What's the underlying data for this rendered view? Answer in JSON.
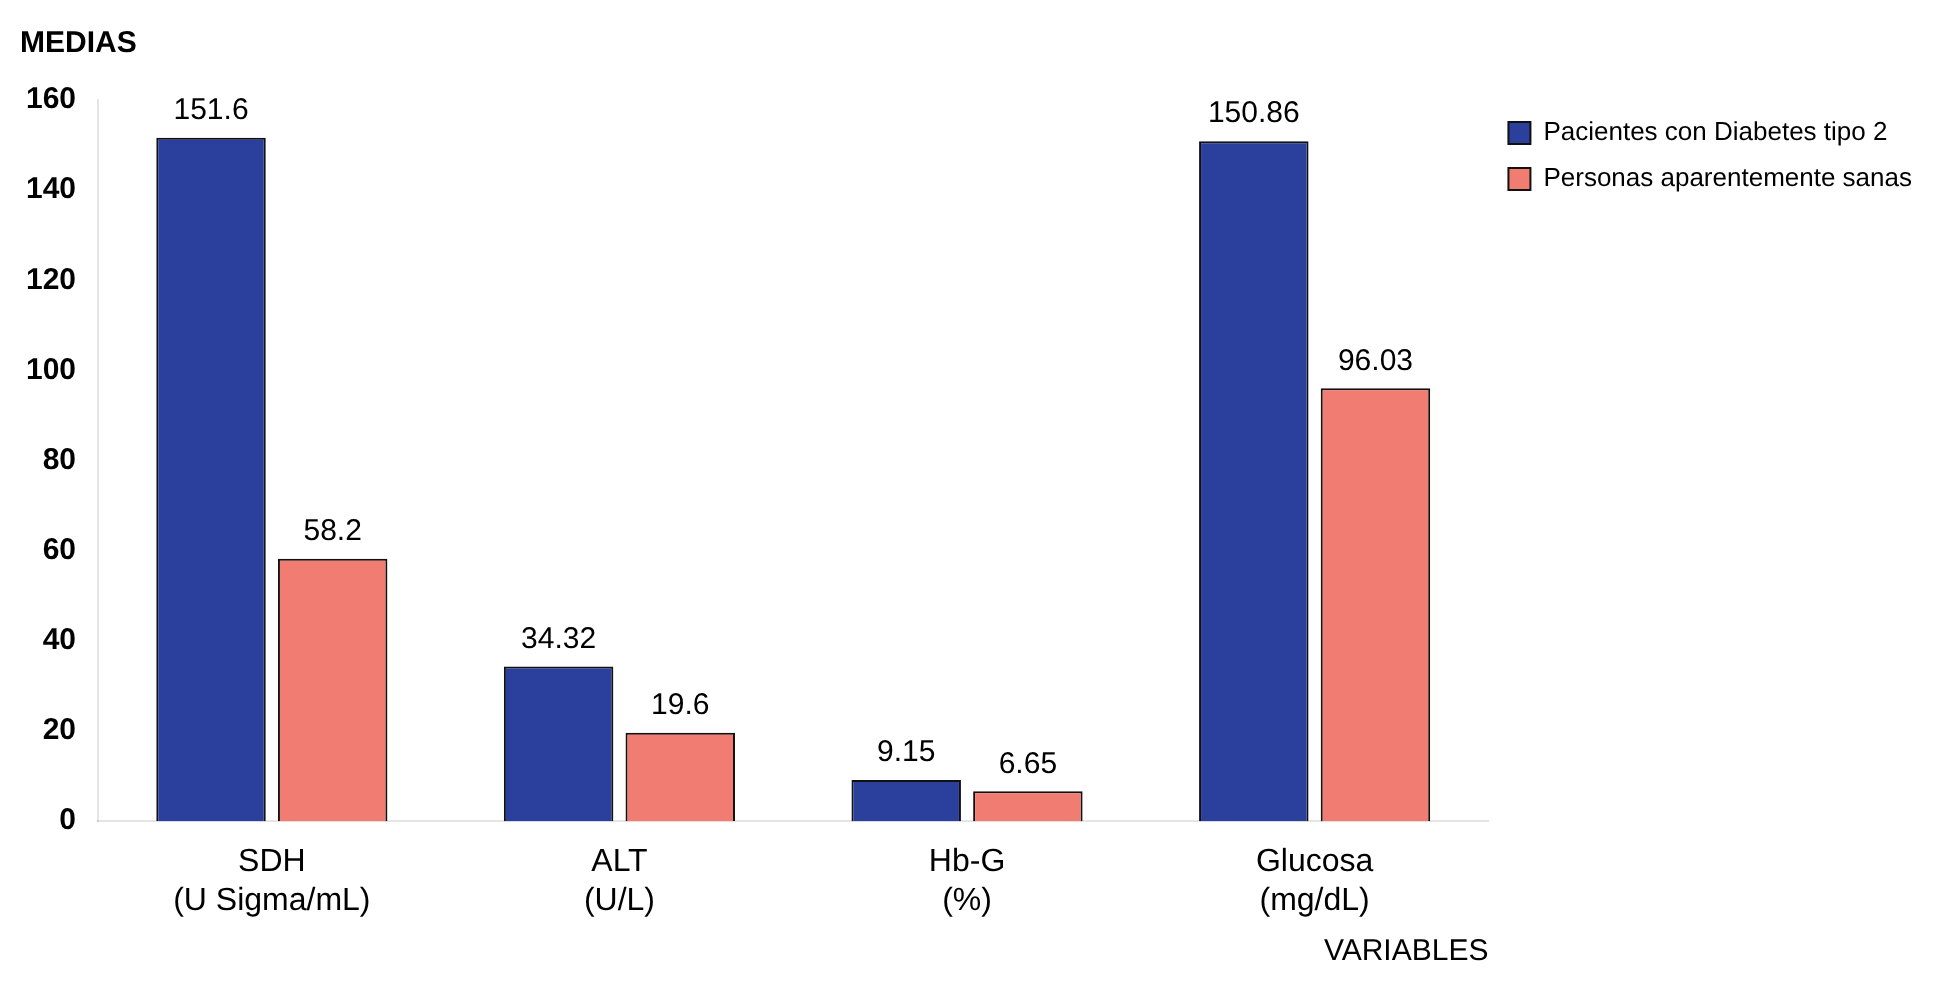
{
  "chart_data": {
    "type": "bar",
    "ylabel": "MEDIAS",
    "xlabel": "VARIABLES",
    "categories": [
      "SDH\n(U Sigma/mL)",
      "ALT\n(U/L)",
      "Hb-G\n(%)",
      "Glucosa\n(mg/dL)"
    ],
    "series": [
      {
        "name": "Pacientes con Diabetes tipo 2",
        "color": "#2b3f9c",
        "values": [
          151.6,
          34.32,
          9.15,
          150.86
        ]
      },
      {
        "name": "Personas aparentemente sanas",
        "color": "#f07c72",
        "values": [
          58.2,
          19.6,
          6.65,
          96.03
        ]
      }
    ],
    "ylim": [
      0,
      160
    ],
    "yticks": [
      0,
      20,
      40,
      60,
      80,
      100,
      120,
      140,
      160
    ],
    "grid": false,
    "legend": "top right",
    "data_labels": true
  }
}
